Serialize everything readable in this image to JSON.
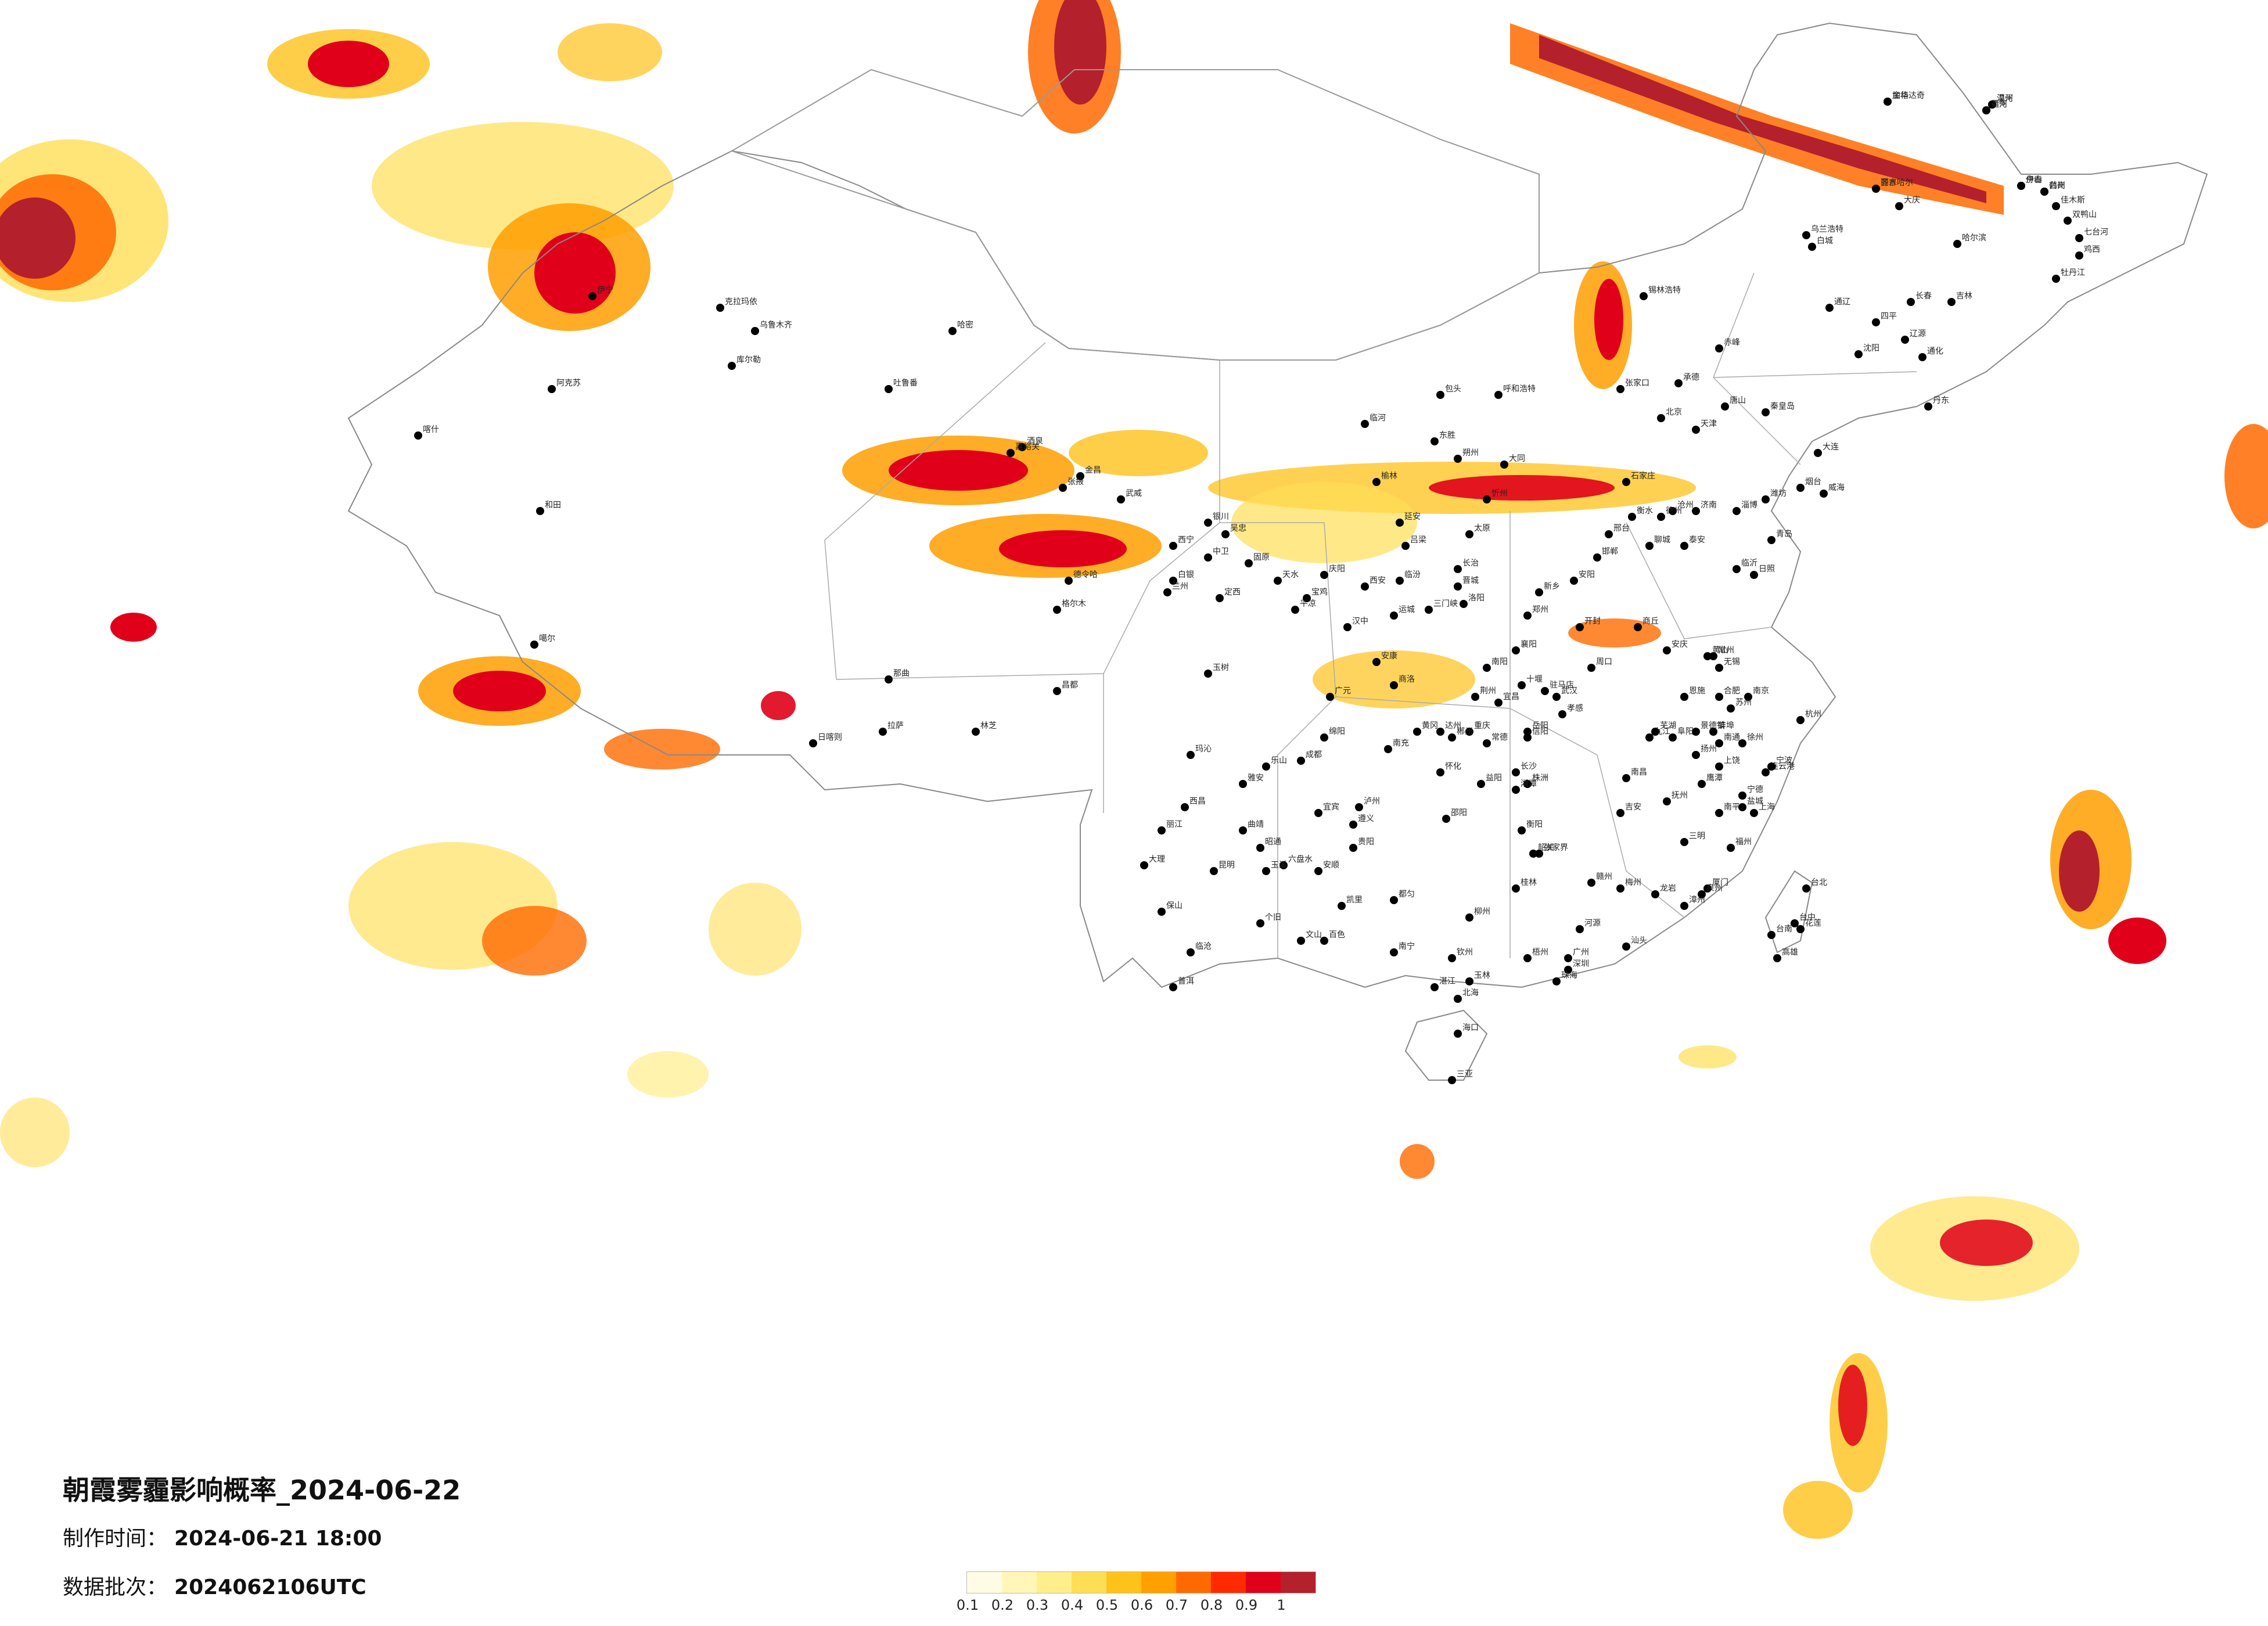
{
  "title": "朝霞雾霾影响概率_2024-06-22",
  "make_time_label": "制作时间：",
  "make_time": "2024-06-21 18:00",
  "batch_label": "数据批次：",
  "batch": "2024062106UTC",
  "legend": {
    "ticks": [
      "0.1",
      "0.2",
      "0.3",
      "0.4",
      "0.5",
      "0.6",
      "0.7",
      "0.8",
      "0.9",
      "1"
    ],
    "colors": [
      "#fffce6",
      "#fff6b8",
      "#ffee8c",
      "#ffde55",
      "#ffc21a",
      "#ff9f00",
      "#ff6a00",
      "#ff2a00",
      "#e0001a",
      "#b4202c"
    ]
  },
  "cities": [
    {
      "name": "漠河"
    },
    {
      "name": "加格达奇"
    },
    {
      "name": "黑河"
    },
    {
      "name": "齐齐哈尔"
    },
    {
      "name": "伊春"
    },
    {
      "name": "鹤岗"
    },
    {
      "name": "佳木斯"
    },
    {
      "name": "双鸭山"
    },
    {
      "name": "大庆"
    },
    {
      "name": "乌兰浩特"
    },
    {
      "name": "白城"
    },
    {
      "name": "哈尔滨"
    },
    {
      "name": "七台河"
    },
    {
      "name": "鸡西"
    },
    {
      "name": "牡丹江"
    },
    {
      "name": "长春"
    },
    {
      "name": "吉林"
    },
    {
      "name": "通辽"
    },
    {
      "name": "四平"
    },
    {
      "name": "辽源"
    },
    {
      "name": "通化"
    },
    {
      "name": "沈阳"
    },
    {
      "name": "丹东"
    },
    {
      "name": "大连"
    },
    {
      "name": "锡林浩特"
    },
    {
      "name": "赤峰"
    },
    {
      "name": "承德"
    },
    {
      "name": "张家口"
    },
    {
      "name": "北京"
    },
    {
      "name": "天津"
    },
    {
      "name": "唐山"
    },
    {
      "name": "秦皇岛"
    },
    {
      "name": "呼和浩特"
    },
    {
      "name": "包头"
    },
    {
      "name": "临河"
    },
    {
      "name": "东胜"
    },
    {
      "name": "朔州"
    },
    {
      "name": "大同"
    },
    {
      "name": "忻州"
    },
    {
      "name": "石家庄"
    },
    {
      "name": "衡水"
    },
    {
      "name": "沧州"
    },
    {
      "name": "济南"
    },
    {
      "name": "淄博"
    },
    {
      "name": "潍坊"
    },
    {
      "name": "烟台"
    },
    {
      "name": "威海"
    },
    {
      "name": "青岛"
    },
    {
      "name": "日照"
    },
    {
      "name": "临沂"
    },
    {
      "name": "泰安"
    },
    {
      "name": "聊城"
    },
    {
      "name": "德州"
    },
    {
      "name": "邢台"
    },
    {
      "name": "邯郸"
    },
    {
      "name": "安阳"
    },
    {
      "name": "新乡"
    },
    {
      "name": "郑州"
    },
    {
      "name": "开封"
    },
    {
      "name": "商丘"
    },
    {
      "name": "周口"
    },
    {
      "name": "驻马店"
    },
    {
      "name": "信阳"
    },
    {
      "name": "南阳"
    },
    {
      "name": "洛阳"
    },
    {
      "name": "三门峡"
    },
    {
      "name": "运城"
    },
    {
      "name": "临汾"
    },
    {
      "name": "太原"
    },
    {
      "name": "吕梁"
    },
    {
      "name": "长治"
    },
    {
      "name": "晋城"
    },
    {
      "name": "榆林"
    },
    {
      "name": "延安"
    },
    {
      "name": "西安"
    },
    {
      "name": "宝鸡"
    },
    {
      "name": "汉中"
    },
    {
      "name": "安康"
    },
    {
      "name": "商洛"
    },
    {
      "name": "银川"
    },
    {
      "name": "吴忠"
    },
    {
      "name": "中卫"
    },
    {
      "name": "固原"
    },
    {
      "name": "白银"
    },
    {
      "name": "兰州"
    },
    {
      "name": "定西"
    },
    {
      "name": "天水"
    },
    {
      "name": "平凉"
    },
    {
      "name": "庆阳"
    },
    {
      "name": "武威"
    },
    {
      "name": "金昌"
    },
    {
      "name": "张掖"
    },
    {
      "name": "酒泉"
    },
    {
      "name": "嘉峪关"
    },
    {
      "name": "西宁"
    },
    {
      "name": "格尔木"
    },
    {
      "name": "德令哈"
    },
    {
      "name": "玉树"
    },
    {
      "name": "玛沁"
    },
    {
      "name": "乌鲁木齐"
    },
    {
      "name": "克拉玛依"
    },
    {
      "name": "伊宁"
    },
    {
      "name": "库尔勒"
    },
    {
      "name": "哈密"
    },
    {
      "name": "吐鲁番"
    },
    {
      "name": "阿克苏"
    },
    {
      "name": "喀什"
    },
    {
      "name": "和田"
    },
    {
      "name": "噶尔"
    },
    {
      "name": "拉萨"
    },
    {
      "name": "日喀则"
    },
    {
      "name": "那曲"
    },
    {
      "name": "林芝"
    },
    {
      "name": "昌都"
    },
    {
      "name": "成都"
    },
    {
      "name": "绵阳"
    },
    {
      "name": "南充"
    },
    {
      "name": "达州"
    },
    {
      "name": "广元"
    },
    {
      "name": "雅安"
    },
    {
      "name": "乐山"
    },
    {
      "name": "宜宾"
    },
    {
      "name": "泸州"
    },
    {
      "name": "重庆"
    },
    {
      "name": "遵义"
    },
    {
      "name": "贵阳"
    },
    {
      "name": "安顺"
    },
    {
      "name": "六盘水"
    },
    {
      "name": "凯里"
    },
    {
      "name": "都匀"
    },
    {
      "name": "昆明"
    },
    {
      "name": "大理"
    },
    {
      "name": "丽江"
    },
    {
      "name": "保山"
    },
    {
      "name": "临沧"
    },
    {
      "name": "普洱"
    },
    {
      "name": "玉溪"
    },
    {
      "name": "个旧"
    },
    {
      "name": "文山"
    },
    {
      "name": "曲靖"
    },
    {
      "name": "昭通"
    },
    {
      "name": "西昌"
    },
    {
      "name": "百色"
    },
    {
      "name": "南宁"
    },
    {
      "name": "柳州"
    },
    {
      "name": "桂林"
    },
    {
      "name": "梧州"
    },
    {
      "name": "玉林"
    },
    {
      "name": "北海"
    },
    {
      "name": "钦州"
    },
    {
      "name": "广州"
    },
    {
      "name": "深圳"
    },
    {
      "name": "珠海"
    },
    {
      "name": "汕头"
    },
    {
      "name": "湛江"
    },
    {
      "name": "韶关"
    },
    {
      "name": "梅州"
    },
    {
      "name": "河源"
    },
    {
      "name": "海口"
    },
    {
      "name": "三亚"
    },
    {
      "name": "福州"
    },
    {
      "name": "厦门"
    },
    {
      "name": "泉州"
    },
    {
      "name": "漳州"
    },
    {
      "name": "龙岩"
    },
    {
      "name": "三明"
    },
    {
      "name": "南平"
    },
    {
      "name": "宁德"
    },
    {
      "name": "台北"
    },
    {
      "name": "台中"
    },
    {
      "name": "高雄"
    },
    {
      "name": "台南"
    },
    {
      "name": "花莲"
    },
    {
      "name": "南昌"
    },
    {
      "name": "九江"
    },
    {
      "name": "景德镇"
    },
    {
      "name": "上饶"
    },
    {
      "name": "鹰潭"
    },
    {
      "name": "抚州"
    },
    {
      "name": "吉安"
    },
    {
      "name": "赣州"
    },
    {
      "name": "长沙"
    },
    {
      "name": "株洲"
    },
    {
      "name": "湘潭"
    },
    {
      "name": "衡阳"
    },
    {
      "name": "岳阳"
    },
    {
      "name": "常德"
    },
    {
      "name": "益阳"
    },
    {
      "name": "邵阳"
    },
    {
      "name": "怀化"
    },
    {
      "name": "张家界"
    },
    {
      "name": "郴州"
    },
    {
      "name": "武汉"
    },
    {
      "name": "宜昌"
    },
    {
      "name": "襄阳"
    },
    {
      "name": "荆州"
    },
    {
      "name": "十堰"
    },
    {
      "name": "孝感"
    },
    {
      "name": "黄冈"
    },
    {
      "name": "恩施"
    },
    {
      "name": "合肥"
    },
    {
      "name": "芜湖"
    },
    {
      "name": "安庆"
    },
    {
      "name": "阜阳"
    },
    {
      "name": "蚌埠"
    },
    {
      "name": "黄山"
    },
    {
      "name": "南京"
    },
    {
      "name": "苏州"
    },
    {
      "name": "无锡"
    },
    {
      "name": "常州"
    },
    {
      "name": "徐州"
    },
    {
      "name": "连云港"
    },
    {
      "name": "盐城"
    },
    {
      "name": "南通"
    },
    {
      "name": "扬州"
    },
    {
      "name": "上海"
    },
    {
      "name": "杭州"
    },
    {
      "name": "宁波"
    },
    {
      "name": "温州"
    },
    {
      "name": "金华"
    },
    {
      "name": "衢州"
    },
    {
      "name": "丽水"
    },
    {
      "name": "舟山"
    },
    {
      "name": "台州"
    }
  ]
}
